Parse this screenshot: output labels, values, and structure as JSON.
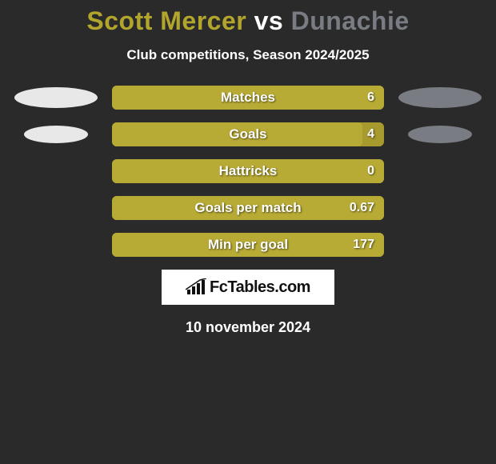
{
  "title": {
    "player1": "Scott Mercer",
    "vs": "vs",
    "player2": "Dunachie",
    "player1_color": "#b2a52c",
    "player2_color": "#7a7c84"
  },
  "subtitle": "Club competitions, Season 2024/2025",
  "background_color": "#2a2a2a",
  "bar_outer_color": "#a79a2e",
  "bar_fill_color": "#b8ab35",
  "left_oval_color": "#e8e8e8",
  "right_oval_color": "#7a7c84",
  "ovals": {
    "row0_width": 104,
    "row0_height": 26,
    "row1_width": 80,
    "row1_height": 22
  },
  "stats": [
    {
      "label": "Matches",
      "value": "6",
      "fill_pct": 100,
      "show_ovals": true,
      "oval_w": 104,
      "oval_h": 26
    },
    {
      "label": "Goals",
      "value": "4",
      "fill_pct": 92,
      "show_ovals": true,
      "oval_w": 80,
      "oval_h": 22
    },
    {
      "label": "Hattricks",
      "value": "0",
      "fill_pct": 100,
      "show_ovals": false
    },
    {
      "label": "Goals per match",
      "value": "0.67",
      "fill_pct": 100,
      "show_ovals": false
    },
    {
      "label": "Min per goal",
      "value": "177",
      "fill_pct": 100,
      "show_ovals": false
    }
  ],
  "logo_text": "FcTables.com",
  "date": "10 november 2024"
}
